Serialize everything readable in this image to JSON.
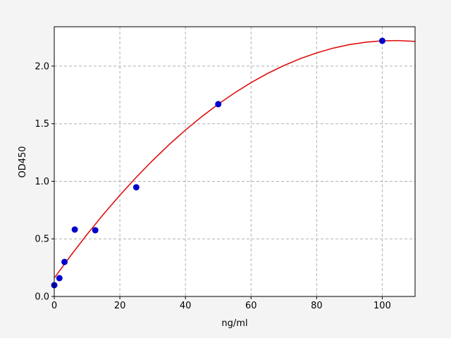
{
  "chart_data": {
    "type": "scatter",
    "xlabel": "ng/ml",
    "ylabel": "OD450",
    "xlim": [
      0,
      110
    ],
    "ylim": [
      0,
      2.342
    ],
    "xticks": [
      0,
      20,
      40,
      60,
      80,
      100
    ],
    "yticks": [
      {
        "value": 0,
        "label": "0.0"
      },
      0.5,
      {
        "value": 1,
        "label": "1.0"
      },
      1.5,
      {
        "value": 2,
        "label": "2.0"
      }
    ],
    "grid": true,
    "series": [
      {
        "mode": "markers",
        "color": "#0000cc",
        "x": [
          0,
          1.5625,
          3.125,
          6.25,
          12.5,
          25,
          50,
          100
        ],
        "values": [
          0.098,
          0.159,
          0.3,
          0.581,
          0.575,
          0.948,
          1.67,
          2.22
        ]
      },
      {
        "mode": "line",
        "color": "#dd1111",
        "x": [
          0,
          5,
          10,
          15,
          20,
          25,
          30,
          35,
          40,
          45,
          50,
          55,
          60,
          65,
          70,
          75,
          80,
          85,
          90,
          95,
          100,
          105,
          110
        ],
        "values": [
          0.16,
          0.354,
          0.539,
          0.714,
          0.879,
          1.035,
          1.181,
          1.318,
          1.445,
          1.562,
          1.67,
          1.768,
          1.857,
          1.936,
          2.005,
          2.065,
          2.115,
          2.156,
          2.187,
          2.208,
          2.22,
          2.222,
          2.215
        ]
      }
    ]
  }
}
